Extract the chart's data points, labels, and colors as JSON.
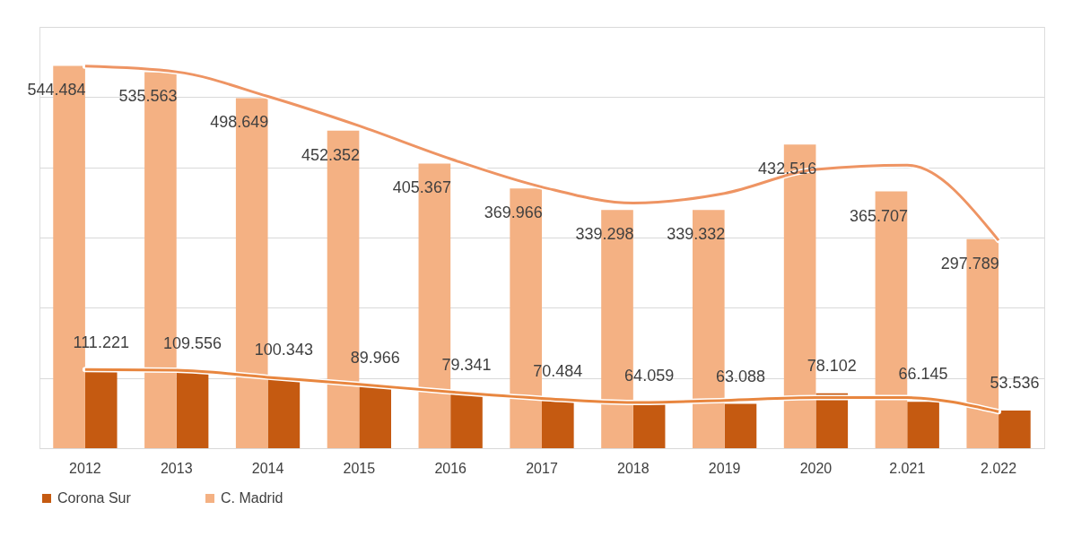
{
  "chart_data": {
    "type": "bar",
    "categories": [
      "2012",
      "2013",
      "2014",
      "2015",
      "2016",
      "2017",
      "2018",
      "2019",
      "2020",
      "2.021",
      "2.022"
    ],
    "series": [
      {
        "name": "Corona Sur",
        "color": "#c55a11",
        "values": [
          111.221,
          109.556,
          100.343,
          89.966,
          79.341,
          70.484,
          64.059,
          63.088,
          78.102,
          66.145,
          53.536
        ],
        "value_labels": [
          "111.221",
          "109.556",
          "100.343",
          "89.966",
          "79.341",
          "70.484",
          "64.059",
          "63.088",
          "78.102",
          "66.145",
          "53.536"
        ]
      },
      {
        "name": "C. Madrid",
        "color": "#f4b183",
        "values": [
          544.484,
          535.563,
          498.649,
          452.352,
          405.367,
          369.966,
          339.298,
          339.332,
          432.516,
          365.707,
          297.789
        ],
        "value_labels": [
          "544.484",
          "535.563",
          "498.649",
          "452.352",
          "405.367",
          "369.966",
          "339.298",
          "339.332",
          "432.516",
          "365.707",
          "297.789"
        ]
      },
      {
        "type": "line",
        "color": "#e8863f",
        "values": [
          112,
          111,
          101,
          91,
          80,
          71,
          65,
          68,
          72,
          72,
          52
        ]
      },
      {
        "type": "line",
        "color": "#ee9463",
        "values": [
          544,
          536,
          501,
          459,
          412,
          372,
          349,
          363,
          397,
          403,
          296
        ]
      }
    ],
    "ylim": [
      0,
      600
    ],
    "yticks": [
      {
        "value": 0,
        "label": null
      },
      {
        "value": 100,
        "label": null
      },
      {
        "value": 200,
        "label": null
      },
      {
        "value": 300,
        "label": null
      },
      {
        "value": 400,
        "label": null
      },
      {
        "value": 500,
        "label": null
      },
      {
        "value": 600,
        "label": null
      }
    ],
    "tick_labels": "x",
    "grid": "y",
    "legend": "bottom"
  }
}
